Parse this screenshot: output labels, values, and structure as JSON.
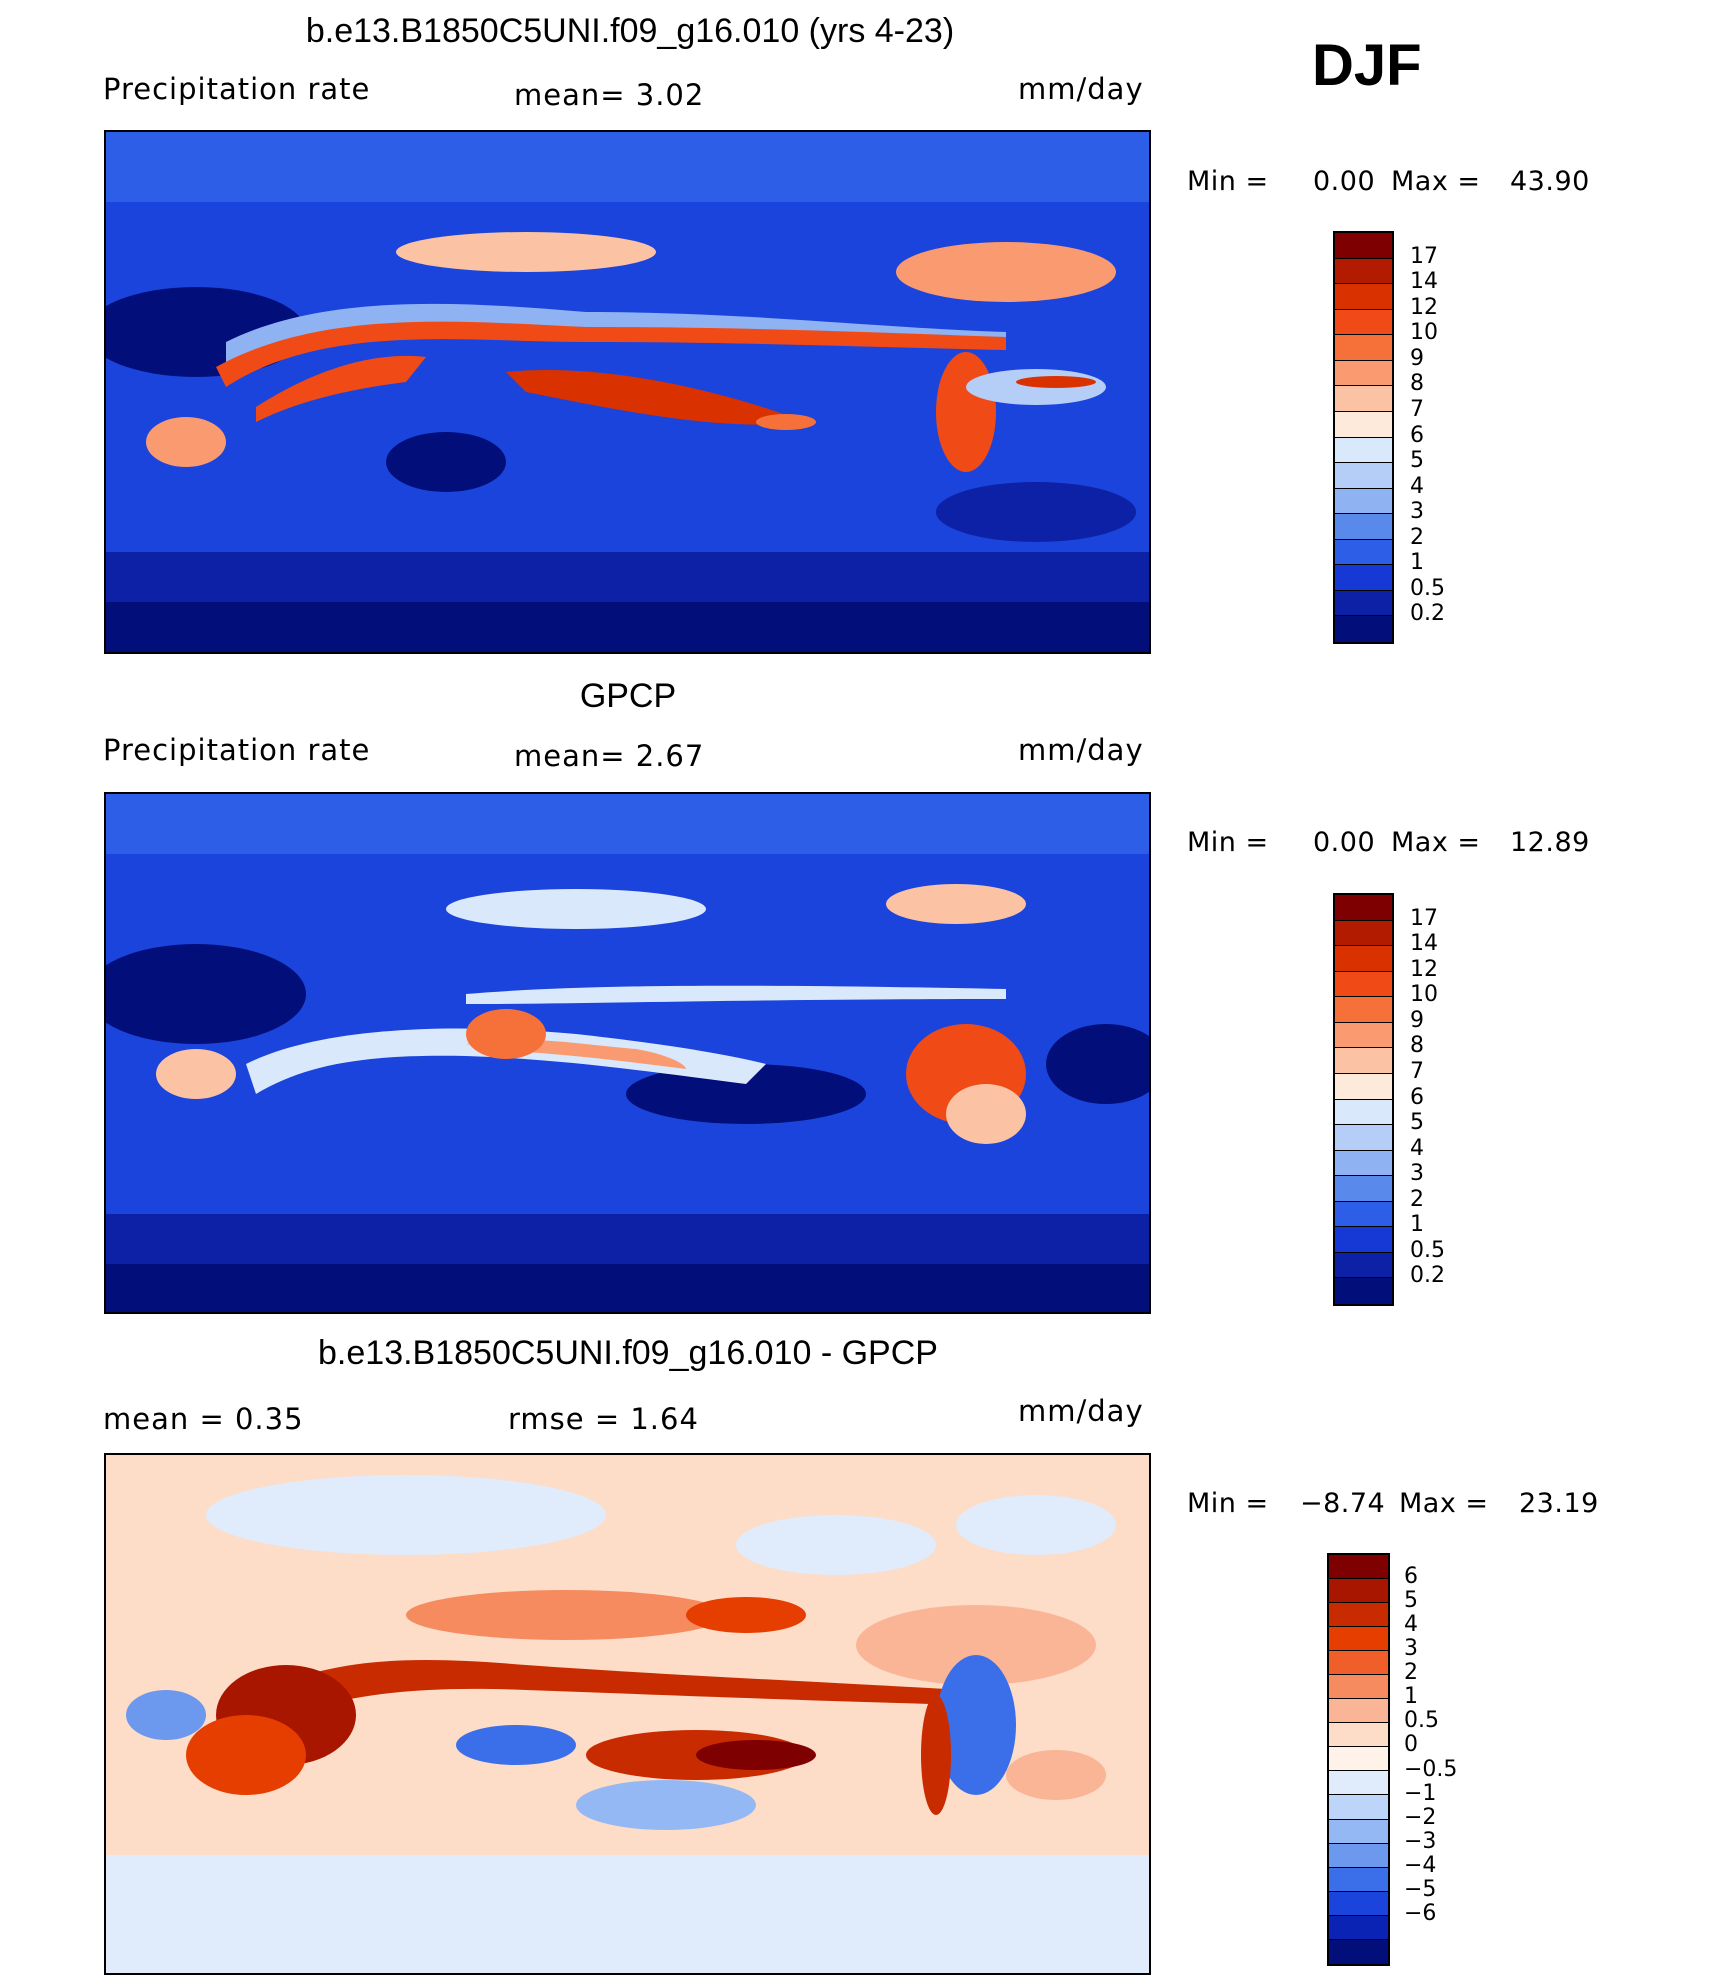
{
  "season": "DJF",
  "panels": [
    {
      "title": "b.e13.B1850C5UNI.f09_g16.010 (yrs 4-23)",
      "left_label": "Precipitation  rate",
      "center_label": "mean=    3.02",
      "units": "mm/day",
      "min_label": "Min  =",
      "min_value": "0.00",
      "max_label": "Max  =",
      "max_value": "43.90",
      "colorbar_levels": [
        "17",
        "14",
        "12",
        "10",
        "9",
        "8",
        "7",
        "6",
        "5",
        "4",
        "3",
        "2",
        "1",
        "0.5",
        "0.2"
      ]
    },
    {
      "title": "GPCP",
      "left_label": "Precipitation  rate",
      "center_label": "mean=    2.67",
      "units": "mm/day",
      "min_label": "Min  =",
      "min_value": "0.00",
      "max_label": "Max  =",
      "max_value": "12.89",
      "colorbar_levels": [
        "17",
        "14",
        "12",
        "10",
        "9",
        "8",
        "7",
        "6",
        "5",
        "4",
        "3",
        "2",
        "1",
        "0.5",
        "0.2"
      ]
    },
    {
      "title": "b.e13.B1850C5UNI.f09_g16.010 - GPCP",
      "left_label": "mean  =     0.35",
      "center_label": "rmse  =     1.64",
      "units": "mm/day",
      "min_label": "Min  =",
      "min_value": "−8.74",
      "max_label": "Max  =",
      "max_value": "23.19",
      "colorbar_levels": [
        "6",
        "5",
        "4",
        "3",
        "2",
        "1",
        "0.5",
        "0",
        "−0.5",
        "−1",
        "−2",
        "−3",
        "−4",
        "−5",
        "−6"
      ]
    }
  ],
  "colors": {
    "precip_scale": [
      "#7f0000",
      "#b21b00",
      "#d93200",
      "#f04b16",
      "#f6713a",
      "#f99a71",
      "#fbc3a3",
      "#fdeadb",
      "#dae8fb",
      "#b5cef8",
      "#8eb2f2",
      "#5a89ec",
      "#2c5ee8",
      "#1638d4",
      "#0d21a6",
      "#020f7a"
    ],
    "diff_scale": [
      "#7f0000",
      "#a91600",
      "#c92b00",
      "#e63d00",
      "#f05f2a",
      "#f58b5e",
      "#f9b596",
      "#fddcc8",
      "#fff2e8",
      "#e0ecfc",
      "#bcd5f9",
      "#94b8f3",
      "#6c98ee",
      "#3b6ee9",
      "#1a44dc",
      "#0a23b4",
      "#020f7a"
    ]
  }
}
